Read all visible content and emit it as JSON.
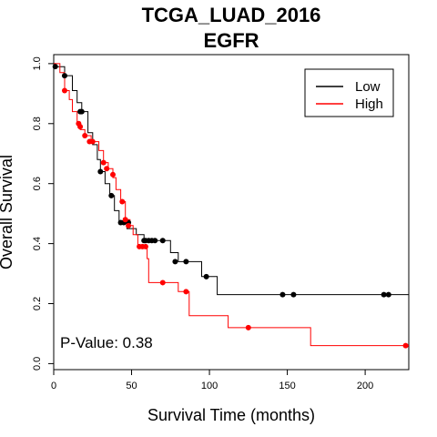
{
  "chart_data": {
    "type": "line",
    "title": "TCGA_LUAD_2016",
    "subtitle": "EGFR",
    "xlabel": "Survival Time (months)",
    "ylabel": "Overall Survival",
    "xlim": [
      0,
      228
    ],
    "ylim": [
      -0.02,
      1.03
    ],
    "x_ticks": [
      0,
      50,
      100,
      150,
      200
    ],
    "y_ticks": [
      0.0,
      0.2,
      0.4,
      0.6,
      0.8,
      1.0
    ],
    "x_tick_labels": [
      "0",
      "50",
      "100",
      "150",
      "200"
    ],
    "y_tick_labels": [
      "0.0",
      "0.2",
      "0.4",
      "0.6",
      "0.8",
      "1.0"
    ],
    "legend": {
      "placement": "top-right",
      "entries": [
        {
          "label": "Low",
          "color": "#000000"
        },
        {
          "label": "High",
          "color": "#ff0000"
        }
      ]
    },
    "annotation": "P-Value: 0.38",
    "series": [
      {
        "name": "Low",
        "color": "#000000",
        "steps": [
          [
            0,
            1.0
          ],
          [
            1,
            0.99
          ],
          [
            7,
            0.96
          ],
          [
            12,
            0.91
          ],
          [
            15,
            0.87
          ],
          [
            18,
            0.84
          ],
          [
            22,
            0.77
          ],
          [
            25,
            0.73
          ],
          [
            28,
            0.68
          ],
          [
            30,
            0.64
          ],
          [
            33,
            0.6
          ],
          [
            36,
            0.56
          ],
          [
            39,
            0.51
          ],
          [
            42,
            0.47
          ],
          [
            47,
            0.45
          ],
          [
            53,
            0.43
          ],
          [
            58,
            0.41
          ],
          [
            75,
            0.37
          ],
          [
            80,
            0.34
          ],
          [
            95,
            0.29
          ],
          [
            105,
            0.23
          ],
          [
            228,
            0.23
          ]
        ],
        "censored": [
          [
            1,
            0.99
          ],
          [
            7,
            0.96
          ],
          [
            17,
            0.84
          ],
          [
            18,
            0.84
          ],
          [
            30,
            0.64
          ],
          [
            37,
            0.56
          ],
          [
            43,
            0.47
          ],
          [
            45,
            0.47
          ],
          [
            48,
            0.47
          ],
          [
            58,
            0.41
          ],
          [
            59,
            0.41
          ],
          [
            61,
            0.41
          ],
          [
            63,
            0.41
          ],
          [
            65,
            0.41
          ],
          [
            70,
            0.41
          ],
          [
            78,
            0.34
          ],
          [
            85,
            0.34
          ],
          [
            98,
            0.29
          ],
          [
            147,
            0.23
          ],
          [
            154,
            0.23
          ],
          [
            212,
            0.23
          ],
          [
            215,
            0.23
          ]
        ]
      },
      {
        "name": "High",
        "color": "#ff0000",
        "steps": [
          [
            0,
            1.0
          ],
          [
            4,
            0.97
          ],
          [
            7,
            0.91
          ],
          [
            10,
            0.88
          ],
          [
            12,
            0.84
          ],
          [
            15,
            0.8
          ],
          [
            17,
            0.78
          ],
          [
            20,
            0.76
          ],
          [
            24,
            0.74
          ],
          [
            29,
            0.71
          ],
          [
            32,
            0.67
          ],
          [
            35,
            0.65
          ],
          [
            38,
            0.62
          ],
          [
            40,
            0.58
          ],
          [
            43,
            0.54
          ],
          [
            46,
            0.48
          ],
          [
            49,
            0.46
          ],
          [
            51,
            0.43
          ],
          [
            54,
            0.39
          ],
          [
            60,
            0.35
          ],
          [
            61,
            0.27
          ],
          [
            73,
            0.27
          ],
          [
            80,
            0.24
          ],
          [
            87,
            0.16
          ],
          [
            112,
            0.12
          ],
          [
            165,
            0.06
          ],
          [
            228,
            0.06
          ]
        ],
        "censored": [
          [
            7,
            0.91
          ],
          [
            16,
            0.8
          ],
          [
            17,
            0.79
          ],
          [
            20,
            0.76
          ],
          [
            23,
            0.74
          ],
          [
            25,
            0.74
          ],
          [
            32,
            0.67
          ],
          [
            34,
            0.65
          ],
          [
            38,
            0.63
          ],
          [
            44,
            0.54
          ],
          [
            46,
            0.48
          ],
          [
            48,
            0.46
          ],
          [
            55,
            0.39
          ],
          [
            57,
            0.39
          ],
          [
            59,
            0.39
          ],
          [
            70,
            0.27
          ],
          [
            85,
            0.24
          ],
          [
            125,
            0.12
          ],
          [
            226,
            0.06
          ]
        ]
      }
    ]
  }
}
